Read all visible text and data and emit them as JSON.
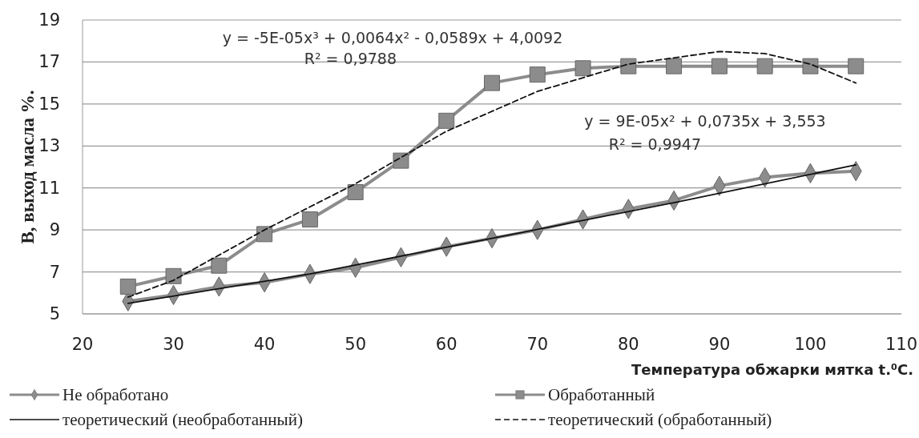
{
  "chart_data": {
    "type": "line",
    "xlabel": "Температура обжарки мятка t.⁰C.",
    "ylabel": "В, выход масла %.",
    "xlim": [
      20,
      110
    ],
    "xticks": [
      20,
      30,
      40,
      50,
      60,
      70,
      80,
      90,
      100,
      110
    ],
    "ylim": [
      5,
      19
    ],
    "yticks": [
      5,
      7,
      9,
      11,
      13,
      15,
      17,
      19
    ],
    "grid": "y",
    "legend": "bottom",
    "x": [
      25,
      30,
      35,
      40,
      45,
      50,
      55,
      60,
      65,
      70,
      75,
      80,
      85,
      90,
      95,
      100,
      105
    ],
    "series": [
      {
        "name": "Не обработано",
        "color": "#8c8c8c",
        "marker": "diamond",
        "line_style": "solid",
        "values": [
          5.6,
          5.9,
          6.3,
          6.5,
          6.9,
          7.2,
          7.7,
          8.2,
          8.6,
          9.0,
          9.5,
          10.0,
          10.4,
          11.1,
          11.5,
          11.7,
          11.8
        ]
      },
      {
        "name": "Обработанный",
        "color": "#8c8c8c",
        "marker": "square",
        "line_style": "solid",
        "values": [
          6.3,
          6.8,
          7.3,
          8.8,
          9.5,
          10.8,
          12.3,
          14.2,
          16.0,
          16.4,
          16.7,
          16.8,
          16.8,
          16.8,
          16.8,
          16.8,
          16.8
        ]
      },
      {
        "name": "теоретический (необработанный)",
        "color": "#111111",
        "marker": "none",
        "line_style": "solid",
        "x": [
          25,
          45,
          65,
          85,
          105
        ],
        "values": [
          5.5,
          6.9,
          8.6,
          10.3,
          12.1
        ]
      },
      {
        "name": "теоретический (обработанный)",
        "color": "#111111",
        "marker": "none",
        "line_style": "dashed",
        "x": [
          25,
          30,
          40,
          50,
          60,
          70,
          80,
          90,
          95,
          100,
          105
        ],
        "values": [
          5.8,
          6.6,
          9.0,
          11.2,
          13.7,
          15.6,
          16.9,
          17.5,
          17.4,
          16.9,
          16.0
        ]
      }
    ],
    "annotations": [
      "y = -5E-05x³ + 0,0064x² - 0,0589x + 4,0092",
      "R² = 0,9788",
      "y = 9E-05x² + 0,0735x + 3,553",
      "R² = 0,9947"
    ]
  }
}
